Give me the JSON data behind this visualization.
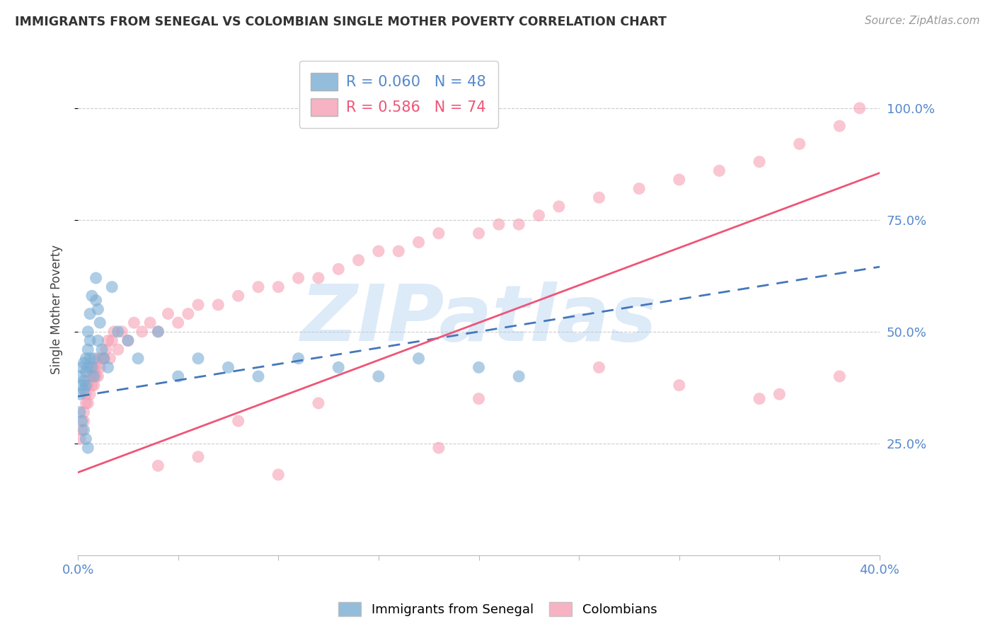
{
  "title": "IMMIGRANTS FROM SENEGAL VS COLOMBIAN SINGLE MOTHER POVERTY CORRELATION CHART",
  "source": "Source: ZipAtlas.com",
  "ylabel": "Single Mother Poverty",
  "ylabel_right_labels": [
    "25.0%",
    "50.0%",
    "75.0%",
    "100.0%"
  ],
  "ylabel_right_positions": [
    0.25,
    0.5,
    0.75,
    1.0
  ],
  "legend_blue_r": "R = 0.060",
  "legend_blue_n": "N = 48",
  "legend_pink_r": "R = 0.586",
  "legend_pink_n": "N = 74",
  "blue_label": "Immigrants from Senegal",
  "pink_label": "Colombians",
  "blue_color": "#7AADD4",
  "pink_color": "#F5A0B5",
  "blue_line_color": "#4477BB",
  "pink_line_color": "#EE5577",
  "watermark": "ZIPatlas",
  "watermark_color": "#AACCEE",
  "xlim": [
    0.0,
    0.4
  ],
  "ylim": [
    0.0,
    1.1
  ],
  "blue_trend_x": [
    0.0,
    0.4
  ],
  "blue_trend_y": [
    0.355,
    0.645
  ],
  "pink_trend_x": [
    0.0,
    0.4
  ],
  "pink_trend_y": [
    0.185,
    0.855
  ],
  "blue_x": [
    0.001,
    0.001,
    0.002,
    0.002,
    0.003,
    0.003,
    0.003,
    0.004,
    0.004,
    0.004,
    0.005,
    0.005,
    0.005,
    0.006,
    0.006,
    0.006,
    0.007,
    0.007,
    0.008,
    0.008,
    0.009,
    0.009,
    0.01,
    0.01,
    0.011,
    0.012,
    0.013,
    0.015,
    0.017,
    0.02,
    0.025,
    0.03,
    0.04,
    0.05,
    0.06,
    0.075,
    0.09,
    0.11,
    0.13,
    0.15,
    0.17,
    0.2,
    0.22,
    0.001,
    0.002,
    0.003,
    0.004,
    0.005
  ],
  "blue_y": [
    0.36,
    0.4,
    0.38,
    0.42,
    0.37,
    0.39,
    0.43,
    0.41,
    0.44,
    0.38,
    0.42,
    0.46,
    0.5,
    0.44,
    0.48,
    0.54,
    0.42,
    0.58,
    0.4,
    0.44,
    0.62,
    0.57,
    0.55,
    0.48,
    0.52,
    0.46,
    0.44,
    0.42,
    0.6,
    0.5,
    0.48,
    0.44,
    0.5,
    0.4,
    0.44,
    0.42,
    0.4,
    0.44,
    0.42,
    0.4,
    0.44,
    0.42,
    0.4,
    0.32,
    0.3,
    0.28,
    0.26,
    0.24
  ],
  "pink_x": [
    0.001,
    0.002,
    0.003,
    0.003,
    0.004,
    0.004,
    0.005,
    0.005,
    0.006,
    0.006,
    0.007,
    0.007,
    0.008,
    0.008,
    0.009,
    0.009,
    0.01,
    0.01,
    0.011,
    0.012,
    0.013,
    0.014,
    0.015,
    0.016,
    0.017,
    0.018,
    0.02,
    0.022,
    0.025,
    0.028,
    0.032,
    0.036,
    0.04,
    0.045,
    0.05,
    0.055,
    0.06,
    0.07,
    0.08,
    0.09,
    0.1,
    0.11,
    0.12,
    0.13,
    0.14,
    0.15,
    0.16,
    0.17,
    0.18,
    0.2,
    0.21,
    0.22,
    0.23,
    0.24,
    0.26,
    0.28,
    0.3,
    0.32,
    0.34,
    0.36,
    0.38,
    0.39,
    0.12,
    0.08,
    0.2,
    0.26,
    0.3,
    0.34,
    0.38,
    0.35,
    0.18,
    0.04,
    0.06,
    0.1
  ],
  "pink_y": [
    0.26,
    0.28,
    0.3,
    0.32,
    0.34,
    0.36,
    0.34,
    0.38,
    0.36,
    0.4,
    0.38,
    0.4,
    0.38,
    0.42,
    0.4,
    0.42,
    0.4,
    0.44,
    0.42,
    0.44,
    0.44,
    0.46,
    0.48,
    0.44,
    0.48,
    0.5,
    0.46,
    0.5,
    0.48,
    0.52,
    0.5,
    0.52,
    0.5,
    0.54,
    0.52,
    0.54,
    0.56,
    0.56,
    0.58,
    0.6,
    0.6,
    0.62,
    0.62,
    0.64,
    0.66,
    0.68,
    0.68,
    0.7,
    0.72,
    0.72,
    0.74,
    0.74,
    0.76,
    0.78,
    0.8,
    0.82,
    0.84,
    0.86,
    0.88,
    0.92,
    0.96,
    1.0,
    0.34,
    0.3,
    0.35,
    0.42,
    0.38,
    0.35,
    0.4,
    0.36,
    0.24,
    0.2,
    0.22,
    0.18
  ]
}
